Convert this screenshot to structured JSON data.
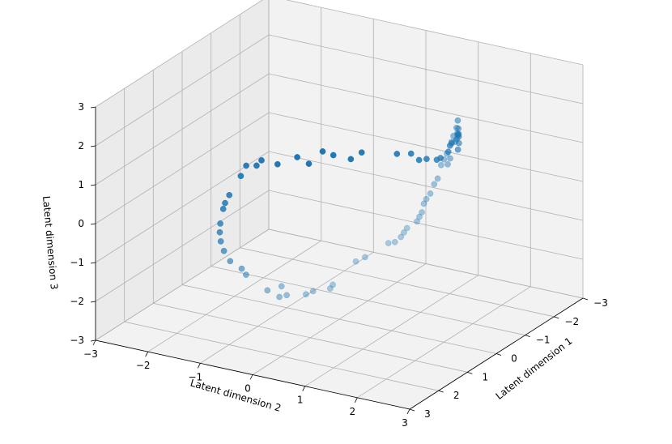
{
  "chart_data": {
    "type": "scatter",
    "projection": "3d",
    "title": "",
    "xlabel": "Latent dimension 1",
    "ylabel": "Latent dimension 2",
    "zlabel": "Latent dimension 3",
    "xlim": [
      -3,
      3
    ],
    "ylim": [
      -3,
      3
    ],
    "zlim": [
      -3,
      3
    ],
    "xticks": [
      "−3",
      "−2",
      "−1",
      "0",
      "1",
      "2",
      "3"
    ],
    "yticks": [
      "−3",
      "−2",
      "−1",
      "0",
      "1",
      "2",
      "3"
    ],
    "zticks": [
      "−3",
      "−2",
      "−1",
      "0",
      "1",
      "2",
      "3"
    ],
    "grid": true,
    "color": "#1f77b4",
    "series": [
      {
        "points": [
          [
            -1.0,
            1.73,
            1.8
          ],
          [
            -1.1,
            1.68,
            1.5
          ],
          [
            -0.9,
            1.78,
            2.0
          ],
          [
            -1.2,
            1.62,
            1.6
          ],
          [
            -0.8,
            1.82,
            1.9
          ],
          [
            -1.3,
            1.55,
            1.2
          ],
          [
            -1.4,
            1.47,
            1.4
          ],
          [
            -1.5,
            1.32,
            1.2
          ],
          [
            -1.6,
            1.2,
            0.9
          ],
          [
            -1.55,
            1.26,
            1.1
          ],
          [
            -1.9,
            0.62,
            0.4
          ],
          [
            -2.0,
            0.0,
            0.3
          ],
          [
            -1.9,
            -0.62,
            0.2
          ],
          [
            -1.85,
            -0.8,
            0.0
          ],
          [
            -1.6,
            -1.2,
            0.2
          ],
          [
            -1.3,
            -1.52,
            0.1
          ],
          [
            -1.0,
            -1.73,
            0.0
          ],
          [
            -0.2,
            -1.99,
            0.0
          ],
          [
            -0.35,
            -1.97,
            0.2
          ],
          [
            0.2,
            -1.99,
            -0.3
          ],
          [
            0.4,
            -1.96,
            -0.4
          ],
          [
            0.5,
            -1.94,
            -0.5
          ],
          [
            1.4,
            -1.43,
            -1.0
          ],
          [
            1.6,
            -1.2,
            -1.1
          ],
          [
            1.85,
            -0.76,
            -1.2
          ],
          [
            1.8,
            -0.87,
            -1.1
          ],
          [
            1.98,
            -0.28,
            -1.4
          ],
          [
            2.0,
            0.0,
            -1.2
          ],
          [
            1.95,
            0.44,
            -1.3
          ],
          [
            1.92,
            0.56,
            -1.2
          ],
          [
            1.82,
            0.83,
            -1.1
          ],
          [
            1.8,
            0.87,
            -1.0
          ],
          [
            1.98,
            -0.05,
            -1.5
          ],
          [
            2.0,
            0.1,
            -1.4
          ],
          [
            1.6,
            1.2,
            -0.4
          ],
          [
            1.5,
            1.32,
            -0.3
          ],
          [
            1.2,
            1.6,
            0.0
          ],
          [
            1.1,
            1.67,
            0.0
          ],
          [
            1.0,
            1.73,
            0.1
          ],
          [
            0.7,
            1.87,
            0.4
          ],
          [
            0.65,
            1.89,
            0.5
          ],
          [
            0.6,
            1.91,
            0.6
          ],
          [
            0.4,
            1.96,
            1.0
          ],
          [
            0.3,
            1.98,
            1.2
          ],
          [
            0.2,
            1.99,
            1.3
          ],
          [
            0.1,
            2.0,
            1.6
          ],
          [
            0.0,
            2.0,
            1.7
          ],
          [
            -0.1,
            2.0,
            1.8
          ],
          [
            -0.3,
            1.98,
            2.0
          ],
          [
            -0.4,
            1.96,
            2.1
          ],
          [
            -0.5,
            1.94,
            1.9
          ],
          [
            -0.6,
            1.91,
            2.2
          ],
          [
            -0.75,
            1.85,
            2.3
          ],
          [
            -0.7,
            1.87,
            2.0
          ],
          [
            -0.8,
            1.83,
            1.9
          ],
          [
            0.5,
            1.94,
            0.9
          ],
          [
            0.55,
            1.92,
            0.8
          ],
          [
            -0.15,
            1.99,
            1.5
          ],
          [
            -0.25,
            1.98,
            1.6
          ],
          [
            0.9,
            1.79,
            0.3
          ],
          [
            0.95,
            1.76,
            0.2
          ],
          [
            -1.95,
            0.45,
            0.3
          ],
          [
            -1.98,
            0.28,
            0.4
          ],
          [
            -1.7,
            -1.05,
            0.1
          ],
          [
            -1.45,
            -1.38,
            -0.1
          ],
          [
            -0.6,
            -1.91,
            0.1
          ],
          [
            -0.7,
            -1.87,
            0.2
          ],
          [
            0.8,
            -1.83,
            -0.7
          ],
          [
            1.0,
            -1.73,
            -0.8
          ],
          [
            1.2,
            -1.6,
            -0.9
          ],
          [
            -1.8,
            0.87,
            0.5
          ],
          [
            -1.75,
            0.97,
            0.6
          ]
        ]
      }
    ]
  }
}
